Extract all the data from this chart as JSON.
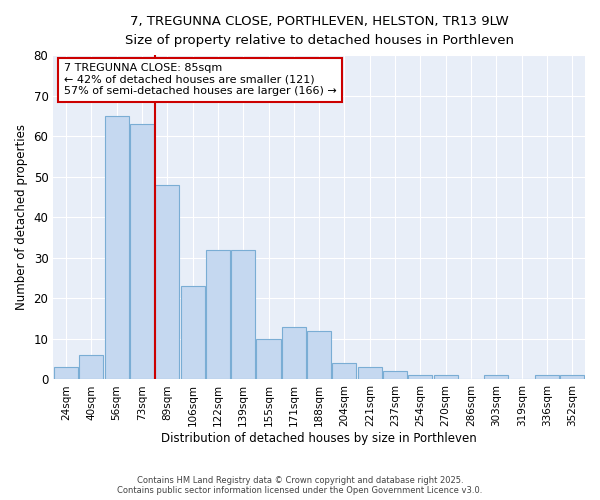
{
  "title_line1": "7, TREGUNNA CLOSE, PORTHLEVEN, HELSTON, TR13 9LW",
  "title_line2": "Size of property relative to detached houses in Porthleven",
  "xlabel": "Distribution of detached houses by size in Porthleven",
  "ylabel": "Number of detached properties",
  "categories": [
    "24sqm",
    "40sqm",
    "56sqm",
    "73sqm",
    "89sqm",
    "106sqm",
    "122sqm",
    "139sqm",
    "155sqm",
    "171sqm",
    "188sqm",
    "204sqm",
    "221sqm",
    "237sqm",
    "254sqm",
    "270sqm",
    "286sqm",
    "303sqm",
    "319sqm",
    "336sqm",
    "352sqm"
  ],
  "values": [
    3,
    6,
    65,
    63,
    48,
    23,
    32,
    32,
    10,
    13,
    12,
    4,
    3,
    2,
    1,
    1,
    0,
    1,
    0,
    1,
    1
  ],
  "bar_color": "#c5d8f0",
  "bar_edge_color": "#7aadd4",
  "red_line_x": 4,
  "annotation_text": "7 TREGUNNA CLOSE: 85sqm\n← 42% of detached houses are smaller (121)\n57% of semi-detached houses are larger (166) →",
  "annotation_box_color": "white",
  "annotation_box_edge_color": "#cc0000",
  "red_line_color": "#cc0000",
  "fig_background_color": "#ffffff",
  "axes_background_color": "#e8eef8",
  "grid_color": "#ffffff",
  "footer_line1": "Contains HM Land Registry data © Crown copyright and database right 2025.",
  "footer_line2": "Contains public sector information licensed under the Open Government Licence v3.0.",
  "ylim": [
    0,
    80
  ],
  "yticks": [
    0,
    10,
    20,
    30,
    40,
    50,
    60,
    70,
    80
  ]
}
